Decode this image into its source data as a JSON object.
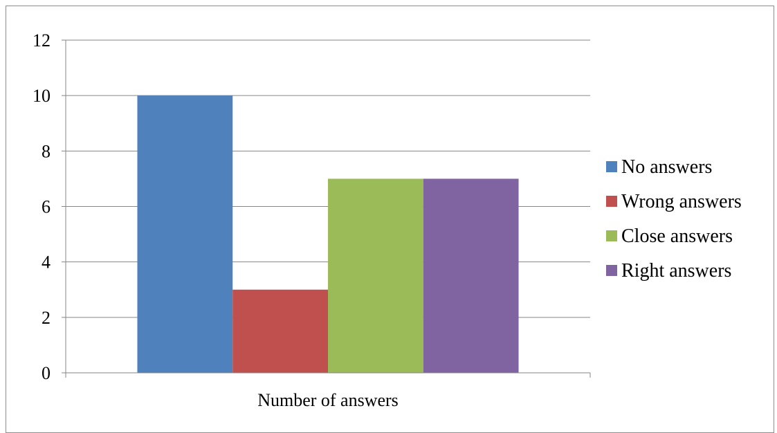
{
  "chart_data": {
    "type": "bar",
    "categories": [
      "Number of answers"
    ],
    "series": [
      {
        "name": "No answers",
        "values": [
          10
        ],
        "color": "#4F81BD"
      },
      {
        "name": "Wrong answers",
        "values": [
          3
        ],
        "color": "#C0504D"
      },
      {
        "name": "Close answers",
        "values": [
          7
        ],
        "color": "#9BBB59"
      },
      {
        "name": "Right answers",
        "values": [
          7
        ],
        "color": "#8064A2"
      }
    ],
    "y_ticks": [
      "0",
      "2",
      "4",
      "6",
      "8",
      "10",
      "12"
    ],
    "ylim": [
      0,
      12
    ],
    "grid": true,
    "legend_position": "right",
    "gridline_color": "#868686",
    "axis_color": "#868686"
  }
}
